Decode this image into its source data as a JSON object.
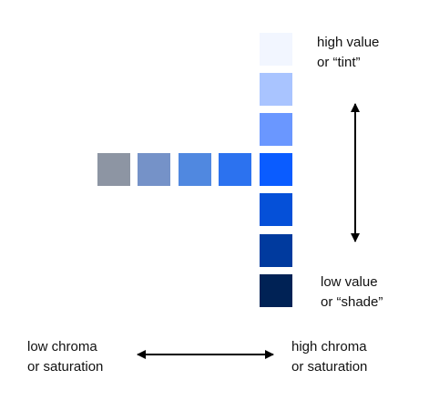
{
  "labels": {
    "high_value": [
      "high value",
      "or “tint”"
    ],
    "low_value": [
      "low value",
      "or “shade”"
    ],
    "low_chroma": [
      "low chroma",
      "or saturation"
    ],
    "high_chroma": [
      "high chroma",
      "or saturation"
    ]
  }
}
